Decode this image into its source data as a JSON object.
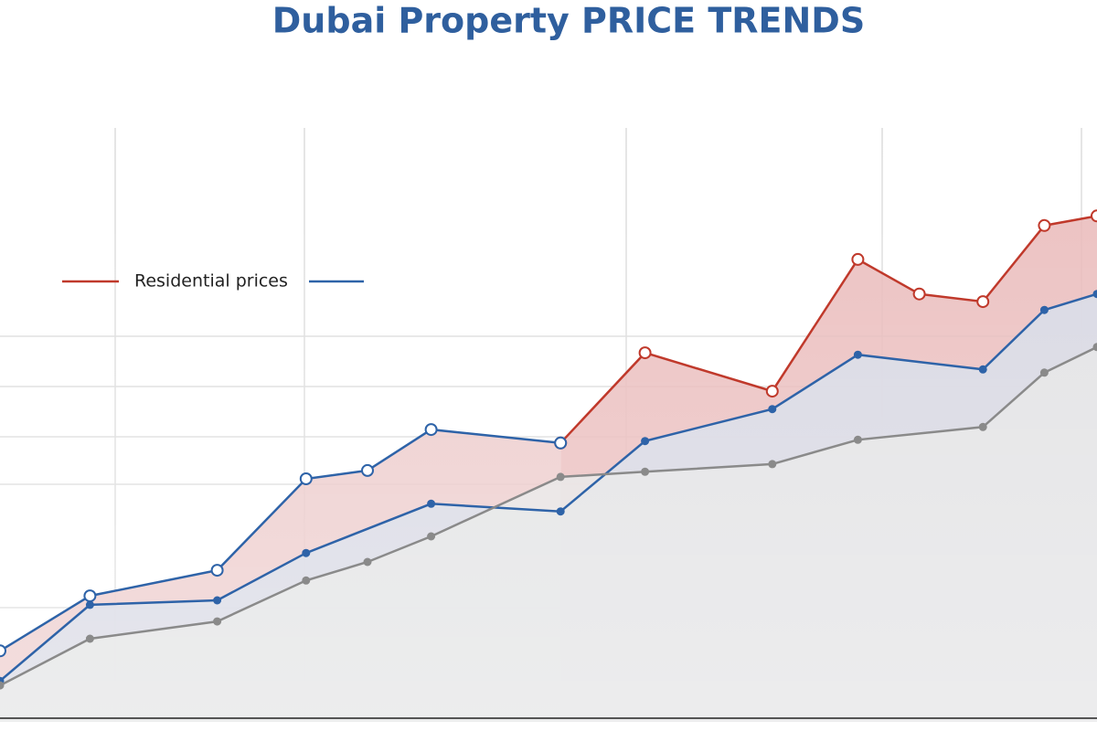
{
  "chart_data": {
    "type": "line",
    "title": "Dubai Property PRICE TRENDS",
    "xlim": [
      0,
      100
    ],
    "ylim": [
      0,
      100
    ],
    "series": [
      {
        "name": "Residential prices",
        "color": "#c0392b",
        "area": "#e8b4b4",
        "x": [
          51.1,
          58.8,
          70.4,
          78.2,
          83.8,
          89.6,
          95.2,
          100
        ],
        "values": [
          43.6,
          57.7,
          51.7,
          72.3,
          66.9,
          65.7,
          77.6,
          79.1
        ]
      },
      {
        "color": "#2e63a8",
        "area": "#eac3c3",
        "x": [
          0,
          8.2,
          19.8,
          27.9,
          33.5,
          39.3,
          51.1
        ],
        "values": [
          11.1,
          19.7,
          23.7,
          38,
          39.3,
          45.7,
          43.6
        ]
      },
      {
        "color": "#2e63a8",
        "area": "#d3dbe8",
        "x": [
          0,
          8.2,
          19.8,
          27.9,
          39.3,
          51.1,
          58.8,
          70.4,
          78.2,
          89.6,
          95.2,
          100
        ],
        "values": [
          6.4,
          18.3,
          19,
          26.4,
          34.1,
          32.9,
          43.9,
          48.9,
          57.4,
          55.1,
          64.4,
          66.9
        ]
      },
      {
        "color": "#8a8a8a",
        "area": "#e4e4e4",
        "x": [
          0,
          8.2,
          19.8,
          27.9,
          33.5,
          39.3,
          51.1,
          58.8,
          70.4,
          78.2,
          89.6,
          95.2,
          100
        ],
        "values": [
          5.7,
          13,
          15.7,
          22.1,
          25,
          29,
          38.3,
          39.1,
          40.3,
          44.1,
          46.1,
          54.6,
          58.6
        ]
      }
    ]
  }
}
